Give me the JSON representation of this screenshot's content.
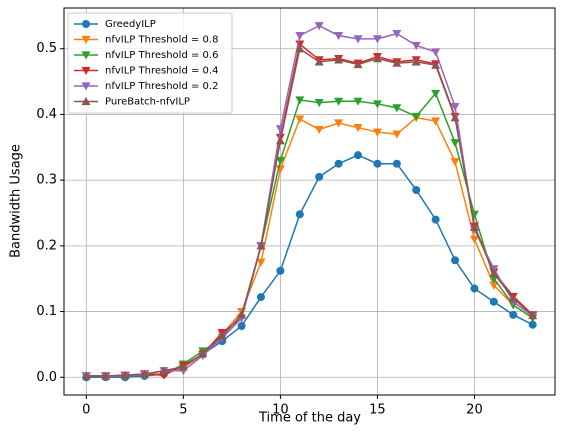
{
  "chart_data": {
    "type": "line",
    "x_label": "Time of the day",
    "y_label": "Bandwidth Usage",
    "x": [
      0,
      1,
      2,
      3,
      4,
      5,
      6,
      7,
      8,
      9,
      10,
      11,
      12,
      13,
      14,
      15,
      16,
      17,
      18,
      19,
      20,
      21,
      22,
      23
    ],
    "series": [
      {
        "name": "GreedyILP",
        "color": "#1f77b4",
        "marker": "circle",
        "values": [
          0,
          0,
          0,
          0.002,
          0.005,
          0.015,
          0.035,
          0.055,
          0.078,
          0.122,
          0.162,
          0.248,
          0.305,
          0.325,
          0.338,
          0.325,
          0.325,
          0.285,
          0.24,
          0.178,
          0.135,
          0.115,
          0.095,
          0.08
        ]
      },
      {
        "name": "nfvILP Threshold = 0.8",
        "color": "#ff7f0e",
        "marker": "triangle-down",
        "values": [
          0.002,
          0.002,
          0.003,
          0.005,
          0.005,
          0.015,
          0.035,
          0.065,
          0.1,
          0.175,
          0.317,
          0.393,
          0.377,
          0.387,
          0.38,
          0.373,
          0.37,
          0.395,
          0.39,
          0.328,
          0.21,
          0.14,
          0.11,
          0.09
        ]
      },
      {
        "name": "nfvILP Threshold = 0.6",
        "color": "#2ca02c",
        "marker": "triangle-down",
        "values": [
          0.002,
          0.002,
          0.002,
          0.004,
          0.004,
          0.02,
          0.04,
          0.06,
          0.09,
          0.2,
          0.33,
          0.422,
          0.418,
          0.42,
          0.42,
          0.416,
          0.41,
          0.397,
          0.432,
          0.357,
          0.248,
          0.15,
          0.11,
          0.09
        ]
      },
      {
        "name": "nfvILP Threshold = 0.4",
        "color": "#d62728",
        "marker": "triangle-down",
        "values": [
          0.002,
          0.002,
          0.003,
          0.005,
          0.003,
          0.018,
          0.035,
          0.068,
          0.09,
          0.2,
          0.365,
          0.507,
          0.483,
          0.485,
          0.478,
          0.488,
          0.48,
          0.483,
          0.477,
          0.397,
          0.23,
          0.16,
          0.123,
          0.095
        ]
      },
      {
        "name": "nfvILP Threshold = 0.2",
        "color": "#9467bd",
        "marker": "triangle-down",
        "values": [
          0.002,
          0.001,
          0.002,
          0.004,
          0.01,
          0.01,
          0.033,
          0.06,
          0.09,
          0.2,
          0.378,
          0.52,
          0.535,
          0.52,
          0.515,
          0.515,
          0.523,
          0.505,
          0.495,
          0.412,
          0.225,
          0.165,
          0.115,
          0.093
        ]
      },
      {
        "name": "PureBatch-nfvILP",
        "color": "#8c564b",
        "marker": "triangle-up",
        "values": [
          0.002,
          0.002,
          0.003,
          0.005,
          0.01,
          0.016,
          0.036,
          0.063,
          0.095,
          0.2,
          0.36,
          0.5,
          0.48,
          0.483,
          0.476,
          0.485,
          0.478,
          0.48,
          0.475,
          0.395,
          0.228,
          0.158,
          0.12,
          0.094
        ]
      }
    ],
    "xlim": [
      -1.15,
      24.15
    ],
    "ylim": [
      -0.027,
      0.562
    ],
    "xticks": [
      0,
      5,
      10,
      15,
      20
    ],
    "yticks": [
      {
        "value": 0,
        "label": "0.0"
      },
      0.1,
      0.2,
      0.3,
      0.4,
      0.5
    ],
    "grid": true,
    "legend": "upper left"
  }
}
